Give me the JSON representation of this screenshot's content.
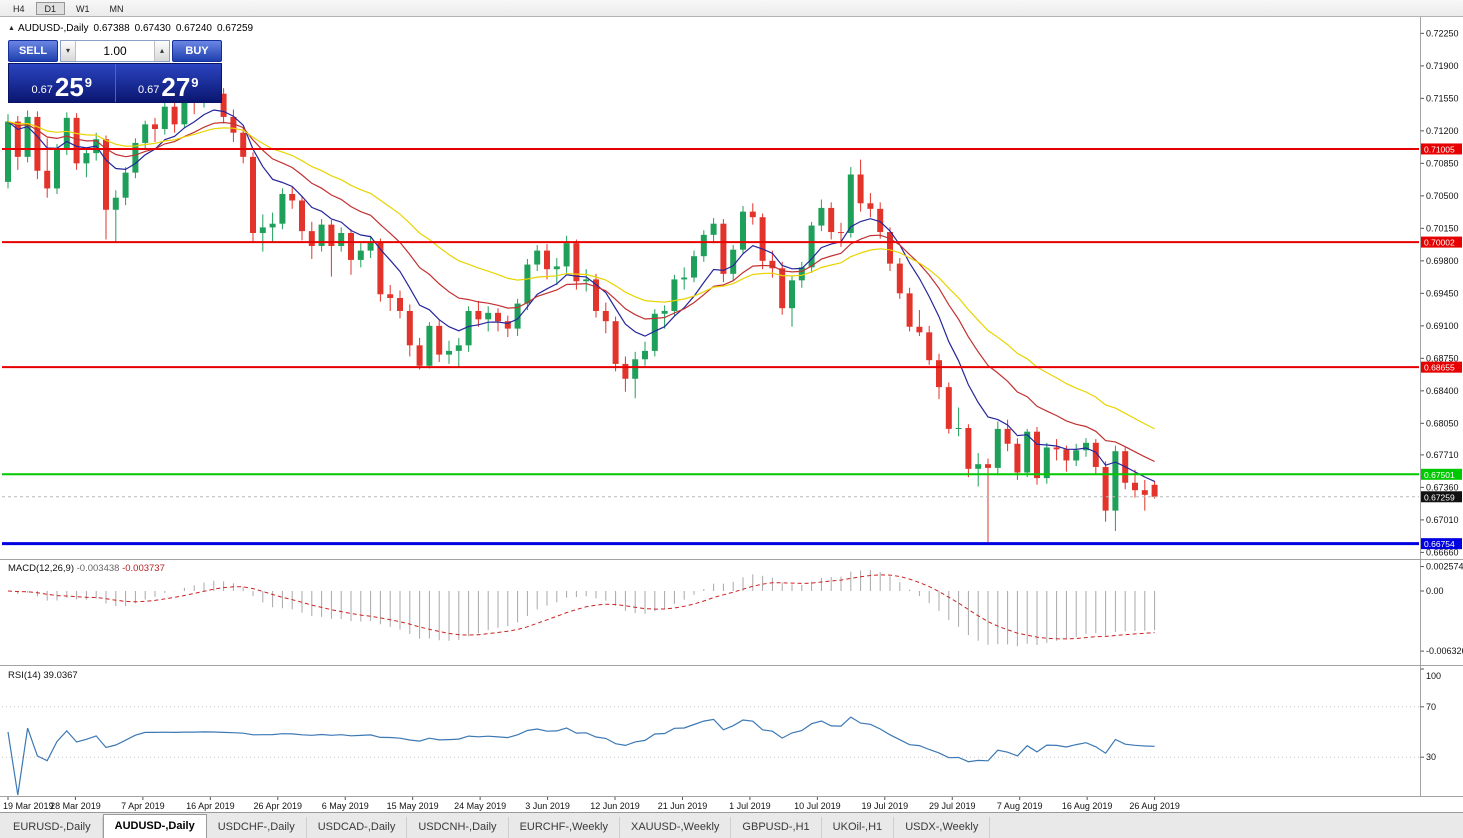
{
  "toolbar": {
    "timeframe_buttons": [
      "H4",
      "D1",
      "W1",
      "MN"
    ],
    "active": "D1"
  },
  "icons": {
    "chart_marker": "▲",
    "volume_up": "▴",
    "volume_down": "▾"
  },
  "chart_header": {
    "symbol": "AUDUSD-,Daily",
    "open": "0.67388",
    "high": "0.67430",
    "low": "0.67240",
    "close": "0.67259"
  },
  "trade_panel": {
    "sell_label": "SELL",
    "buy_label": "BUY",
    "volume": "1.00",
    "sell_price": {
      "prefix": "0.67",
      "pips": "25",
      "fraction": "9"
    },
    "buy_price": {
      "prefix": "0.67",
      "pips": "27",
      "fraction": "9"
    }
  },
  "indicators": {
    "macd": {
      "name": "MACD(12,26,9)",
      "value1": "-0.003438",
      "value2": "-0.003737"
    },
    "rsi": {
      "name": "RSI(14)",
      "value": "39.0367"
    }
  },
  "bottom_tabs": {
    "items": [
      {
        "label": "EURUSD-,Daily",
        "active": false
      },
      {
        "label": "AUDUSD-,Daily",
        "active": true
      },
      {
        "label": "USDCHF-,Daily",
        "active": false
      },
      {
        "label": "USDCAD-,Daily",
        "active": false
      },
      {
        "label": "USDCNH-,Daily",
        "active": false
      },
      {
        "label": "EURCHF-,Weekly",
        "active": false
      },
      {
        "label": "XAUUSD-,Weekly",
        "active": false
      },
      {
        "label": "GBPUSD-,H1",
        "active": false
      },
      {
        "label": "UKOil-,H1",
        "active": false
      },
      {
        "label": "USDX-,Weekly",
        "active": false
      }
    ]
  },
  "chart_data": {
    "type": "candlestick",
    "title": "AUDUSD-,Daily",
    "price_axis_ticks": [
      "0.72250",
      "0.71900",
      "0.71550",
      "0.71200",
      "0.70850",
      "0.70500",
      "0.70150",
      "0.69800",
      "0.69450",
      "0.69100",
      "0.68750",
      "0.68400",
      "0.68050",
      "0.67710",
      "0.67360",
      "0.67010",
      "0.66660"
    ],
    "date_labels": [
      "19 Mar 2019",
      "28 Mar 2019",
      "7 Apr 2019",
      "16 Apr 2019",
      "26 Apr 2019",
      "6 May 2019",
      "15 May 2019",
      "24 May 2019",
      "3 Jun 2019",
      "12 Jun 2019",
      "21 Jun 2019",
      "1 Jul 2019",
      "10 Jul 2019",
      "19 Jul 2019",
      "29 Jul 2019",
      "7 Aug 2019",
      "16 Aug 2019",
      "26 Aug 2019"
    ],
    "colors": {
      "up": "#1fa05a",
      "down": "#e3342b",
      "background": "#ffffff"
    },
    "candles": [
      [
        0.7065,
        0.7138,
        0.7058,
        0.713
      ],
      [
        0.713,
        0.7136,
        0.7078,
        0.7092
      ],
      [
        0.7092,
        0.7142,
        0.7086,
        0.7135
      ],
      [
        0.7135,
        0.7141,
        0.7068,
        0.7077
      ],
      [
        0.7077,
        0.7112,
        0.7048,
        0.7058
      ],
      [
        0.7058,
        0.7106,
        0.7052,
        0.71
      ],
      [
        0.71,
        0.714,
        0.7094,
        0.7134
      ],
      [
        0.7134,
        0.7139,
        0.7078,
        0.7085
      ],
      [
        0.7085,
        0.7102,
        0.707,
        0.7096
      ],
      [
        0.7096,
        0.7118,
        0.7088,
        0.7111
      ],
      [
        0.7111,
        0.7115,
        0.7003,
        0.7035
      ],
      [
        0.7035,
        0.7056,
        0.7,
        0.7048
      ],
      [
        0.7048,
        0.7081,
        0.704,
        0.7075
      ],
      [
        0.7075,
        0.7112,
        0.7069,
        0.7107
      ],
      [
        0.7107,
        0.7131,
        0.71,
        0.7127
      ],
      [
        0.7127,
        0.7134,
        0.7108,
        0.7122
      ],
      [
        0.7122,
        0.715,
        0.7116,
        0.7146
      ],
      [
        0.7146,
        0.7152,
        0.7118,
        0.7127
      ],
      [
        0.7127,
        0.716,
        0.7124,
        0.7155
      ],
      [
        0.7155,
        0.7162,
        0.7138,
        0.7152
      ],
      [
        0.7152,
        0.717,
        0.7145,
        0.7165
      ],
      [
        0.7165,
        0.7178,
        0.7152,
        0.716
      ],
      [
        0.716,
        0.7166,
        0.7128,
        0.7135
      ],
      [
        0.7135,
        0.7143,
        0.7108,
        0.7118
      ],
      [
        0.7118,
        0.7123,
        0.7085,
        0.7092
      ],
      [
        0.7092,
        0.7097,
        0.7,
        0.701
      ],
      [
        0.701,
        0.703,
        0.699,
        0.7016
      ],
      [
        0.7016,
        0.7032,
        0.7,
        0.702
      ],
      [
        0.702,
        0.7058,
        0.7014,
        0.7052
      ],
      [
        0.7052,
        0.706,
        0.7036,
        0.7045
      ],
      [
        0.7045,
        0.705,
        0.7002,
        0.7012
      ],
      [
        0.7012,
        0.7022,
        0.6982,
        0.6996
      ],
      [
        0.6996,
        0.7025,
        0.699,
        0.7019
      ],
      [
        0.7019,
        0.7024,
        0.6963,
        0.6996
      ],
      [
        0.6996,
        0.7016,
        0.699,
        0.701
      ],
      [
        0.701,
        0.7014,
        0.6965,
        0.6981
      ],
      [
        0.6981,
        0.6999,
        0.6973,
        0.6991
      ],
      [
        0.6991,
        0.7006,
        0.6983,
        0.7
      ],
      [
        0.7,
        0.7004,
        0.6936,
        0.6944
      ],
      [
        0.6944,
        0.6954,
        0.6926,
        0.694
      ],
      [
        0.694,
        0.6948,
        0.6918,
        0.6926
      ],
      [
        0.6926,
        0.6933,
        0.6877,
        0.6889
      ],
      [
        0.6889,
        0.6897,
        0.6863,
        0.6867
      ],
      [
        0.6867,
        0.6914,
        0.6864,
        0.691
      ],
      [
        0.691,
        0.6916,
        0.6871,
        0.6879
      ],
      [
        0.6879,
        0.6894,
        0.6869,
        0.6883
      ],
      [
        0.6883,
        0.6897,
        0.6865,
        0.6889
      ],
      [
        0.6889,
        0.6931,
        0.6882,
        0.6926
      ],
      [
        0.6926,
        0.6937,
        0.6909,
        0.6917
      ],
      [
        0.6917,
        0.6931,
        0.6904,
        0.6924
      ],
      [
        0.6924,
        0.6929,
        0.6904,
        0.6915
      ],
      [
        0.6915,
        0.6921,
        0.6898,
        0.6907
      ],
      [
        0.6907,
        0.6939,
        0.6899,
        0.6934
      ],
      [
        0.6934,
        0.6982,
        0.6927,
        0.6976
      ],
      [
        0.6976,
        0.6997,
        0.6969,
        0.6991
      ],
      [
        0.6991,
        0.6998,
        0.696,
        0.6971
      ],
      [
        0.6971,
        0.6983,
        0.6954,
        0.6974
      ],
      [
        0.6974,
        0.7007,
        0.6967,
        0.6999
      ],
      [
        0.6999,
        0.7003,
        0.6949,
        0.6958
      ],
      [
        0.6958,
        0.6971,
        0.6947,
        0.696
      ],
      [
        0.696,
        0.6966,
        0.6919,
        0.6926
      ],
      [
        0.6926,
        0.6935,
        0.6902,
        0.6915
      ],
      [
        0.6915,
        0.692,
        0.6861,
        0.6869
      ],
      [
        0.6869,
        0.6877,
        0.6839,
        0.6853
      ],
      [
        0.6853,
        0.6882,
        0.6832,
        0.6874
      ],
      [
        0.6874,
        0.6893,
        0.6867,
        0.6883
      ],
      [
        0.6883,
        0.6928,
        0.6877,
        0.6923
      ],
      [
        0.6923,
        0.6932,
        0.6907,
        0.6926
      ],
      [
        0.6926,
        0.6965,
        0.6921,
        0.696
      ],
      [
        0.696,
        0.6973,
        0.6949,
        0.6962
      ],
      [
        0.6962,
        0.6991,
        0.6957,
        0.6985
      ],
      [
        0.6985,
        0.7013,
        0.6979,
        0.7008
      ],
      [
        0.7008,
        0.7026,
        0.6999,
        0.702
      ],
      [
        0.702,
        0.7025,
        0.6957,
        0.6966
      ],
      [
        0.6966,
        0.6997,
        0.6959,
        0.6992
      ],
      [
        0.6992,
        0.7039,
        0.6987,
        0.7033
      ],
      [
        0.7033,
        0.7042,
        0.7019,
        0.7027
      ],
      [
        0.7027,
        0.7031,
        0.6971,
        0.698
      ],
      [
        0.698,
        0.6991,
        0.6962,
        0.6972
      ],
      [
        0.6972,
        0.6979,
        0.6922,
        0.6929
      ],
      [
        0.6929,
        0.6964,
        0.6909,
        0.6959
      ],
      [
        0.6959,
        0.6979,
        0.6951,
        0.6973
      ],
      [
        0.6973,
        0.7022,
        0.6967,
        0.7018
      ],
      [
        0.7018,
        0.7046,
        0.7012,
        0.7037
      ],
      [
        0.7037,
        0.7043,
        0.7003,
        0.7011
      ],
      [
        0.7011,
        0.7021,
        0.6995,
        0.701
      ],
      [
        0.701,
        0.7081,
        0.7005,
        0.7073
      ],
      [
        0.7073,
        0.7089,
        0.7033,
        0.7042
      ],
      [
        0.7042,
        0.7053,
        0.7027,
        0.7036
      ],
      [
        0.7036,
        0.7043,
        0.7004,
        0.7011
      ],
      [
        0.7011,
        0.7016,
        0.6969,
        0.6977
      ],
      [
        0.6977,
        0.6983,
        0.6939,
        0.6945
      ],
      [
        0.6945,
        0.6951,
        0.6904,
        0.6909
      ],
      [
        0.6909,
        0.6927,
        0.6899,
        0.6903
      ],
      [
        0.6903,
        0.691,
        0.6868,
        0.6873
      ],
      [
        0.6873,
        0.688,
        0.6831,
        0.6844
      ],
      [
        0.6844,
        0.6849,
        0.6794,
        0.6799
      ],
      [
        0.6799,
        0.6822,
        0.6791,
        0.68
      ],
      [
        0.68,
        0.6804,
        0.6747,
        0.6756
      ],
      [
        0.6756,
        0.6773,
        0.6737,
        0.6761
      ],
      [
        0.6761,
        0.6767,
        0.6677,
        0.6757
      ],
      [
        0.6757,
        0.6807,
        0.6749,
        0.6799
      ],
      [
        0.6799,
        0.6809,
        0.6775,
        0.6783
      ],
      [
        0.6783,
        0.6789,
        0.6744,
        0.6752
      ],
      [
        0.6752,
        0.6799,
        0.6747,
        0.6796
      ],
      [
        0.6796,
        0.6801,
        0.6739,
        0.6746
      ],
      [
        0.6746,
        0.6784,
        0.674,
        0.6779
      ],
      [
        0.6779,
        0.6788,
        0.6765,
        0.6777
      ],
      [
        0.6777,
        0.6781,
        0.6753,
        0.6765
      ],
      [
        0.6765,
        0.6783,
        0.6759,
        0.6776
      ],
      [
        0.6776,
        0.6789,
        0.6769,
        0.6784
      ],
      [
        0.6784,
        0.6788,
        0.6751,
        0.6758
      ],
      [
        0.6758,
        0.6764,
        0.6699,
        0.6711
      ],
      [
        0.6711,
        0.6781,
        0.6689,
        0.6775
      ],
      [
        0.6775,
        0.6779,
        0.6734,
        0.6741
      ],
      [
        0.6741,
        0.6755,
        0.6725,
        0.6733
      ],
      [
        0.6733,
        0.6744,
        0.6711,
        0.6728
      ],
      [
        0.67388,
        0.6743,
        0.6724,
        0.67259
      ]
    ],
    "moving_averages": [
      {
        "type": "ema",
        "period": 8,
        "color": "#26269c"
      },
      {
        "type": "ema",
        "period": 16,
        "color": "#c23131"
      },
      {
        "type": "ema",
        "period": 28,
        "color": "#e8d400"
      }
    ],
    "hlines": [
      {
        "price": 0.71005,
        "label": "0.71005",
        "color": "#e60000",
        "width": 2
      },
      {
        "price": 0.70002,
        "label": "0.70002",
        "color": "#e60000",
        "width": 2
      },
      {
        "price": 0.68655,
        "label": "0.68655",
        "color": "#e60000",
        "width": 2
      },
      {
        "price": 0.67501,
        "label": "0.67501",
        "color": "#00c800",
        "width": 2
      },
      {
        "price": 0.66754,
        "label": "0.66754",
        "color": "#0000e0",
        "width": 3
      }
    ],
    "current_price": {
      "value": 0.67259,
      "label": "0.67259",
      "tag_color": "#111111"
    },
    "macd": {
      "params": [
        12,
        26,
        9
      ],
      "axis_ticks": [
        "0.002574",
        "0.00",
        "-0.006326"
      ],
      "histogram_color": "#a8a8a8",
      "signal_color": "#cc2222"
    },
    "rsi": {
      "period": 14,
      "value": 39.0367,
      "axis_ticks": [
        "100",
        "70",
        "30"
      ],
      "levels": [
        70,
        30
      ],
      "color": "#3c78b4"
    }
  }
}
